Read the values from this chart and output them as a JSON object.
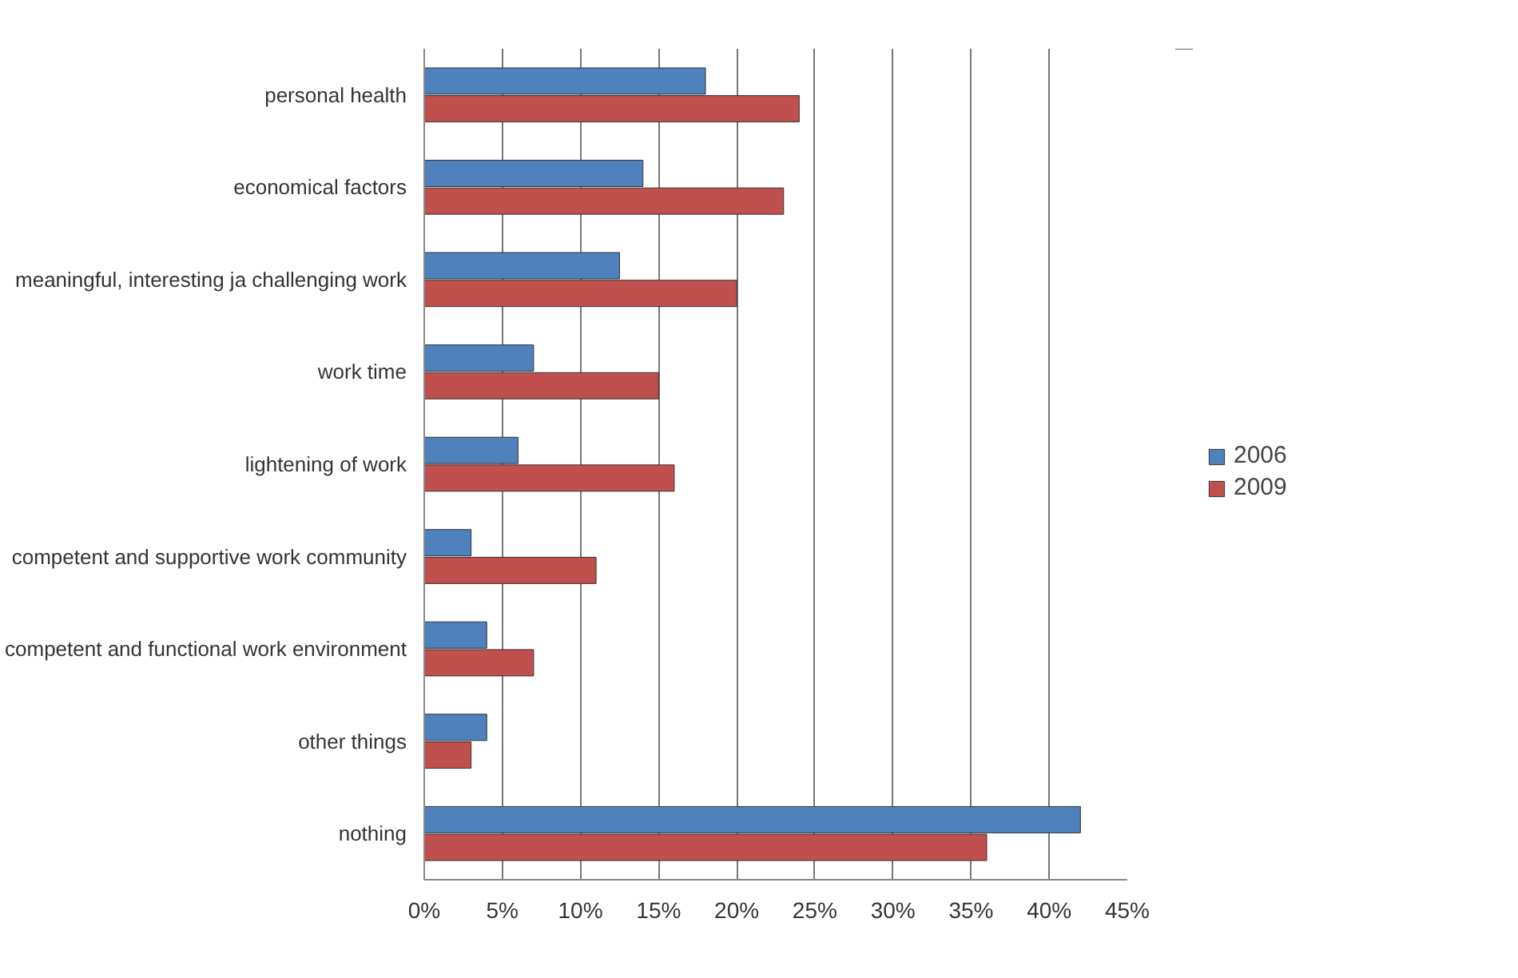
{
  "chart_data": {
    "type": "bar",
    "orientation": "horizontal",
    "categories": [
      "personal health",
      "economical factors",
      "meaningful, interesting ja challenging work",
      "work time",
      "lightening of work",
      "competent and supportive work community",
      "competent and functional work environment",
      "other things",
      "nothing"
    ],
    "series": [
      {
        "name": "2006",
        "color": "#4f81bd",
        "values": [
          18,
          14,
          12.5,
          7,
          6,
          3,
          4,
          4,
          42
        ]
      },
      {
        "name": "2009",
        "color": "#c0504d",
        "values": [
          24,
          23,
          20,
          15,
          16,
          11,
          7,
          3,
          36
        ]
      }
    ],
    "xlim": [
      0,
      45
    ],
    "xticks": [
      {
        "value": 0,
        "label": "0%"
      },
      {
        "value": 5,
        "label": "5%"
      },
      {
        "value": 10,
        "label": "10%"
      },
      {
        "value": 15,
        "label": "15%"
      },
      {
        "value": 20,
        "label": "20%"
      },
      {
        "value": 25,
        "label": "25%"
      },
      {
        "value": 30,
        "label": "30%"
      },
      {
        "value": 35,
        "label": "35%"
      },
      {
        "value": 40,
        "label": "40%"
      },
      {
        "value": 45,
        "label": "45%"
      }
    ],
    "grid": "x",
    "legend": "right"
  }
}
